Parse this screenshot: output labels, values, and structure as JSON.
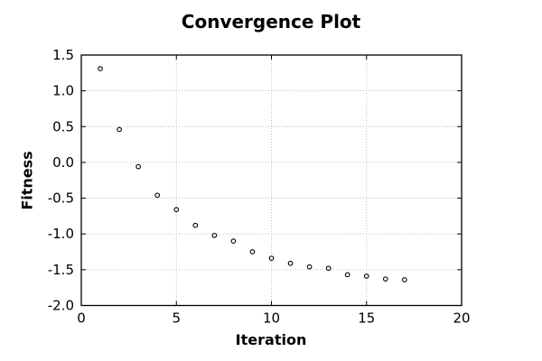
{
  "chart_data": {
    "type": "scatter",
    "title": "Convergence Plot",
    "xlabel": "Iteration",
    "ylabel": "Fitness",
    "x": [
      1,
      2,
      3,
      4,
      5,
      6,
      7,
      8,
      9,
      10,
      11,
      12,
      13,
      14,
      15,
      16,
      17
    ],
    "y": [
      1.31,
      0.46,
      -0.06,
      -0.46,
      -0.66,
      -0.88,
      -1.02,
      -1.1,
      -1.25,
      -1.34,
      -1.41,
      -1.46,
      -1.48,
      -1.57,
      -1.59,
      -1.63,
      -1.64
    ],
    "xlim": [
      0,
      20
    ],
    "ylim": [
      -2.0,
      1.5
    ],
    "xticks": {
      "values": [
        0,
        5,
        10,
        15,
        20
      ],
      "labels": [
        "0",
        "5",
        "10",
        "15",
        "20"
      ]
    },
    "yticks": {
      "values": [
        1.5,
        1.0,
        0.5,
        0.0,
        -0.5,
        -1.0,
        -1.5,
        -2.0
      ],
      "labels": [
        "1.5",
        "1.0",
        "0.5",
        "0.0",
        "-0.5",
        "-1.0",
        "-1.5",
        "-2.0"
      ]
    },
    "grid": true,
    "grid_style": "dotted",
    "legend": "none",
    "marker": "open-circle",
    "colors": {
      "marker": "#000000",
      "grid": "#c0c0c0",
      "frame": "#000000",
      "background": "#ffffff",
      "text": "#000000"
    }
  }
}
